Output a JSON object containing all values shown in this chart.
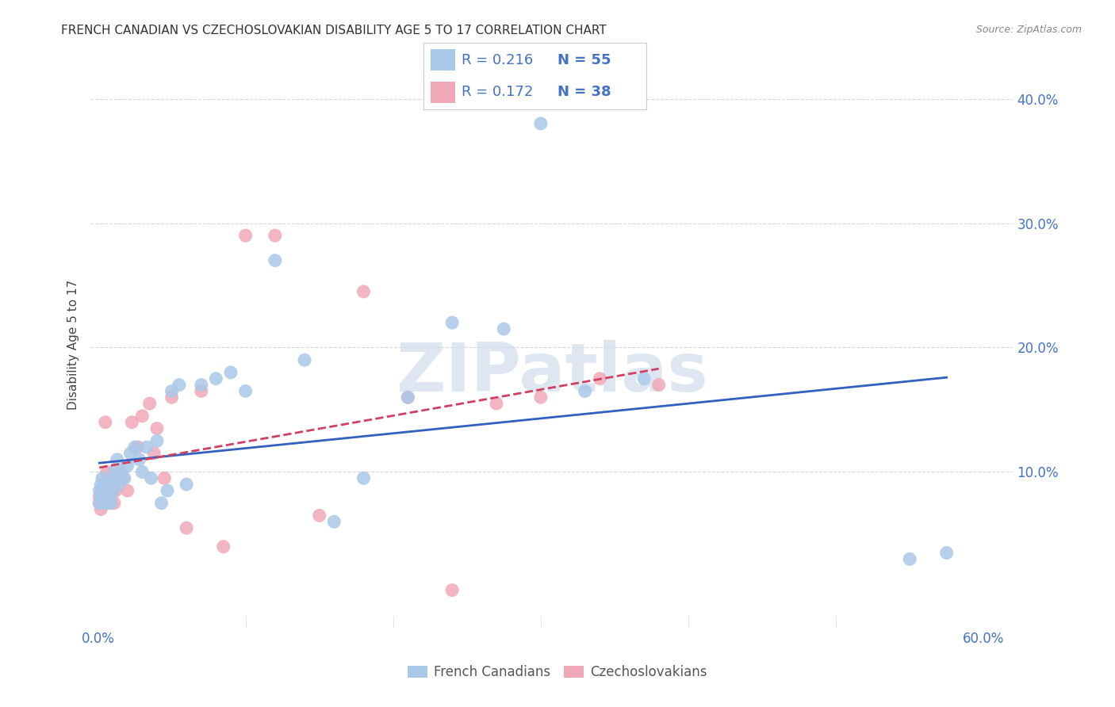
{
  "title": "FRENCH CANADIAN VS CZECHOSLOVAKIAN DISABILITY AGE 5 TO 17 CORRELATION CHART",
  "source": "Source: ZipAtlas.com",
  "ylabel": "Disability Age 5 to 17",
  "xlim": [
    -0.005,
    0.62
  ],
  "ylim": [
    -0.025,
    0.43
  ],
  "R1": 0.216,
  "N1": 55,
  "R2": 0.172,
  "N2": 38,
  "color1": "#aac8e8",
  "color2": "#f0a8b8",
  "line_color1": "#3060c0",
  "line_color2": "#d04060",
  "legend_label1": "French Canadians",
  "legend_label2": "Czechoslovakians",
  "watermark": "ZIPatlas",
  "background_color": "#ffffff",
  "grid_color": "#d8d8d8",
  "fc_x": [
    0.001,
    0.001,
    0.002,
    0.002,
    0.003,
    0.003,
    0.004,
    0.004,
    0.004,
    0.005,
    0.005,
    0.006,
    0.006,
    0.007,
    0.007,
    0.008,
    0.008,
    0.009,
    0.009,
    0.01,
    0.011,
    0.012,
    0.013,
    0.014,
    0.016,
    0.018,
    0.02,
    0.022,
    0.025,
    0.028,
    0.03,
    0.033,
    0.036,
    0.04,
    0.043,
    0.047,
    0.05,
    0.055,
    0.06,
    0.07,
    0.08,
    0.09,
    0.1,
    0.12,
    0.14,
    0.16,
    0.18,
    0.21,
    0.24,
    0.275,
    0.3,
    0.33,
    0.37,
    0.55,
    0.575
  ],
  "fc_y": [
    0.085,
    0.075,
    0.09,
    0.08,
    0.095,
    0.08,
    0.075,
    0.085,
    0.09,
    0.08,
    0.09,
    0.085,
    0.075,
    0.09,
    0.085,
    0.08,
    0.09,
    0.085,
    0.075,
    0.085,
    0.1,
    0.095,
    0.11,
    0.09,
    0.1,
    0.095,
    0.105,
    0.115,
    0.12,
    0.11,
    0.1,
    0.12,
    0.095,
    0.125,
    0.075,
    0.085,
    0.165,
    0.17,
    0.09,
    0.17,
    0.175,
    0.18,
    0.165,
    0.27,
    0.19,
    0.06,
    0.095,
    0.16,
    0.22,
    0.215,
    0.38,
    0.165,
    0.175,
    0.03,
    0.035
  ],
  "cz_x": [
    0.001,
    0.001,
    0.002,
    0.003,
    0.003,
    0.004,
    0.005,
    0.006,
    0.007,
    0.008,
    0.009,
    0.01,
    0.011,
    0.012,
    0.014,
    0.017,
    0.02,
    0.023,
    0.027,
    0.03,
    0.035,
    0.038,
    0.04,
    0.045,
    0.05,
    0.06,
    0.07,
    0.085,
    0.1,
    0.12,
    0.15,
    0.18,
    0.21,
    0.24,
    0.27,
    0.3,
    0.34,
    0.38
  ],
  "cz_y": [
    0.075,
    0.08,
    0.07,
    0.085,
    0.075,
    0.09,
    0.14,
    0.1,
    0.085,
    0.075,
    0.09,
    0.095,
    0.075,
    0.085,
    0.1,
    0.095,
    0.085,
    0.14,
    0.12,
    0.145,
    0.155,
    0.115,
    0.135,
    0.095,
    0.16,
    0.055,
    0.165,
    0.04,
    0.29,
    0.29,
    0.065,
    0.245,
    0.16,
    0.005,
    0.155,
    0.16,
    0.175,
    0.17
  ]
}
